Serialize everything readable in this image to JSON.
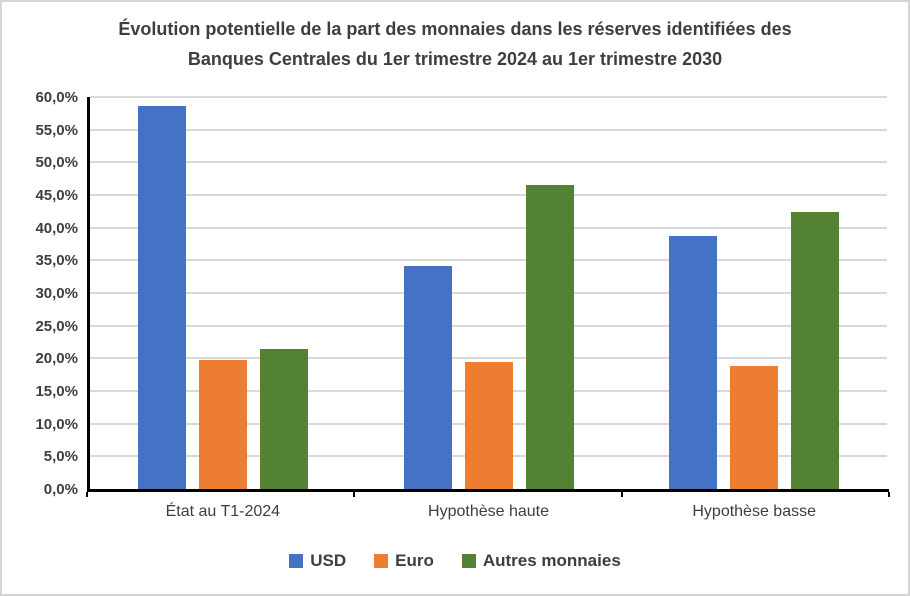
{
  "chart_data": {
    "type": "bar",
    "title_line1": "Évolution potentielle de la part des monnaies dans les réserves identifiées des",
    "title_line2": "Banques Centrales du 1er trimestre 2024 au 1er trimestre 2030",
    "categories": [
      "État au T1-2024",
      "Hypothèse haute",
      "Hypothèse basse"
    ],
    "series": [
      {
        "name": "USD",
        "color": "#4472C4",
        "values": [
          58.7,
          34.1,
          38.8
        ]
      },
      {
        "name": "Euro",
        "color": "#ED7D31",
        "values": [
          19.7,
          19.4,
          18.8
        ]
      },
      {
        "name": "Autres monnaies",
        "color": "#548235",
        "values": [
          21.5,
          46.6,
          42.4
        ]
      }
    ],
    "ylim": [
      0,
      60
    ],
    "ytick_step": 5,
    "ytick_labels": [
      "0,0%",
      "5,0%",
      "10,0%",
      "15,0%",
      "20,0%",
      "25,0%",
      "30,0%",
      "35,0%",
      "40,0%",
      "45,0%",
      "50,0%",
      "55,0%",
      "60,0%"
    ],
    "grid": true,
    "legend_position": "bottom"
  },
  "colors": {
    "text": "#3e3e3e",
    "gridline": "#d9d9d9",
    "axis": "#000000",
    "frame_border": "#d6d6d6",
    "background": "#ffffff"
  }
}
